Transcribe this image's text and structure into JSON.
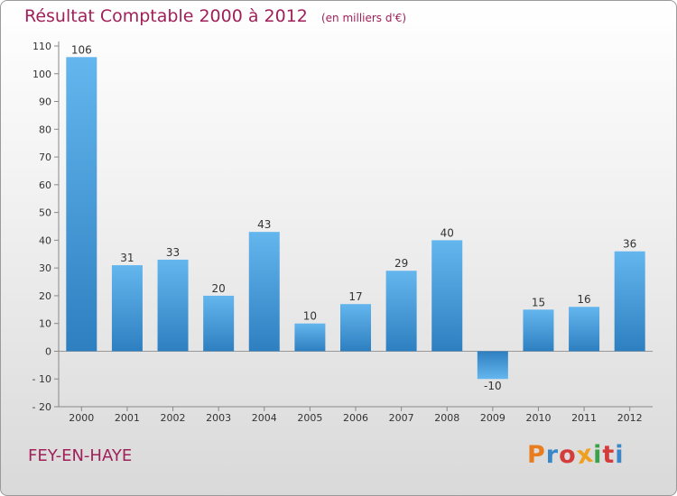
{
  "header": {
    "title": "Résultat Comptable 2000 à 2012",
    "unit": "(en milliers d'€)"
  },
  "footer": {
    "city": "FEY-EN-HAYE",
    "logo_letters": [
      "P",
      "r",
      "o",
      "x",
      "i",
      "t",
      "i"
    ],
    "logo_colors": [
      "#e87c1e",
      "#3a86c8",
      "#d43b3b",
      "#f0a020",
      "#3aa34a",
      "#d43b3b",
      "#3a86c8"
    ]
  },
  "colors": {
    "bar": "#3d8fd1",
    "bar_light": "#62b4ec",
    "accent": "#a0205a"
  },
  "chart_data": {
    "type": "bar",
    "title": "Résultat Comptable 2000 à 2012",
    "ylabel": "(en milliers d'€)",
    "xlabel": "",
    "categories": [
      "2000",
      "2001",
      "2002",
      "2003",
      "2004",
      "2005",
      "2006",
      "2007",
      "2008",
      "2009",
      "2010",
      "2011",
      "2012"
    ],
    "values": [
      106,
      31,
      33,
      20,
      43,
      10,
      17,
      29,
      40,
      -10,
      15,
      16,
      36
    ],
    "value_labels": [
      "106",
      "31",
      "33",
      "20",
      "43",
      "10",
      "17",
      "29",
      "40",
      "-10",
      "15",
      "16",
      "36"
    ],
    "ylim": [
      -20,
      110
    ],
    "yticks": [
      -20,
      -10,
      0,
      10,
      20,
      30,
      40,
      50,
      60,
      70,
      80,
      90,
      100,
      110
    ],
    "grid": false
  }
}
